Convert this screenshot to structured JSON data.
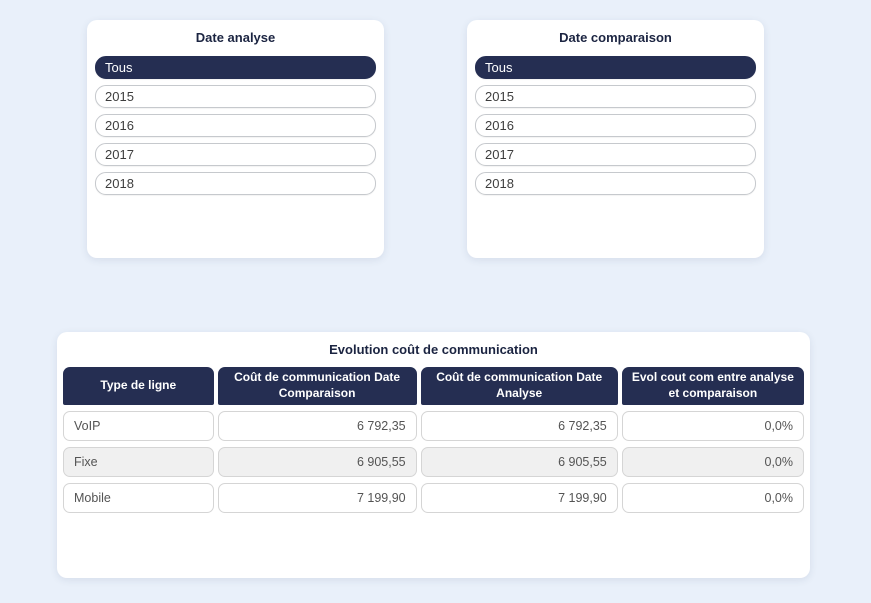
{
  "theme": {
    "accent_navy": "#252e52",
    "page_background": "#e9f0fa",
    "panel_background": "#ffffff",
    "alt_row_background": "#f0f0f0"
  },
  "filters": [
    {
      "title": "Date analyse",
      "items": [
        {
          "label": "Tous",
          "selected": true
        },
        {
          "label": "2015",
          "selected": false
        },
        {
          "label": "2016",
          "selected": false
        },
        {
          "label": "2017",
          "selected": false
        },
        {
          "label": "2018",
          "selected": false
        }
      ]
    },
    {
      "title": "Date comparaison",
      "items": [
        {
          "label": "Tous",
          "selected": true
        },
        {
          "label": "2015",
          "selected": false
        },
        {
          "label": "2016",
          "selected": false
        },
        {
          "label": "2017",
          "selected": false
        },
        {
          "label": "2018",
          "selected": false
        }
      ]
    }
  ],
  "table": {
    "title": "Evolution coût de communication",
    "columns": [
      "Type de ligne",
      "Coût de communication Date Comparaison",
      "Coût de communication Date Analyse",
      "Evol cout com entre analyse et comparaison"
    ],
    "rows": [
      {
        "type_de_ligne": "VoIP",
        "cout_date_comparaison": "6 792,35",
        "cout_date_analyse": "6 792,35",
        "evol": "0,0%"
      },
      {
        "type_de_ligne": "Fixe",
        "cout_date_comparaison": "6 905,55",
        "cout_date_analyse": "6 905,55",
        "evol": "0,0%"
      },
      {
        "type_de_ligne": "Mobile",
        "cout_date_comparaison": "7 199,90",
        "cout_date_analyse": "7 199,90",
        "evol": "0,0%"
      }
    ]
  }
}
